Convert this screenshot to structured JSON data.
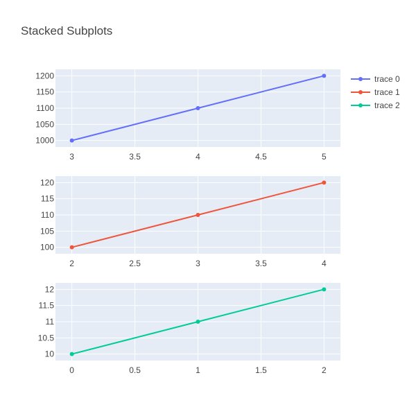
{
  "chart_data": {
    "title": "Stacked Subplots",
    "type": "line",
    "subplots": [
      {
        "series": [
          {
            "name": "trace 0",
            "color": "#636efa",
            "x": [
              3,
              4,
              5
            ],
            "y": [
              1000,
              1100,
              1200
            ]
          }
        ],
        "xlim": [
          2.87,
          5.13
        ],
        "ylim": [
          980,
          1220
        ],
        "xticks": [
          3,
          3.5,
          4,
          4.5,
          5
        ],
        "xtick_labels": [
          "3",
          "3.5",
          "4",
          "4.5",
          "5"
        ],
        "yticks": [
          1000,
          1050,
          1100,
          1150,
          1200
        ],
        "ytick_labels": [
          "1000",
          "1050",
          "1100",
          "1150",
          "1200"
        ]
      },
      {
        "series": [
          {
            "name": "trace 1",
            "color": "#ef553b",
            "x": [
              2,
              3,
              4
            ],
            "y": [
              100,
              110,
              120
            ]
          }
        ],
        "xlim": [
          1.87,
          4.13
        ],
        "ylim": [
          98,
          122
        ],
        "xticks": [
          2,
          2.5,
          3,
          3.5,
          4
        ],
        "xtick_labels": [
          "2",
          "2.5",
          "3",
          "3.5",
          "4"
        ],
        "yticks": [
          100,
          105,
          110,
          115,
          120
        ],
        "ytick_labels": [
          "100",
          "105",
          "110",
          "115",
          "120"
        ]
      },
      {
        "series": [
          {
            "name": "trace 2",
            "color": "#00cc96",
            "x": [
              0,
              1,
              2
            ],
            "y": [
              10,
              11,
              12
            ]
          }
        ],
        "xlim": [
          -0.13,
          2.13
        ],
        "ylim": [
          9.8,
          12.2
        ],
        "xticks": [
          0,
          0.5,
          1,
          1.5,
          2
        ],
        "xtick_labels": [
          "0",
          "0.5",
          "1",
          "1.5",
          "2"
        ],
        "yticks": [
          10,
          10.5,
          11,
          11.5,
          12
        ],
        "ytick_labels": [
          "10",
          "10.5",
          "11",
          "11.5",
          "12"
        ]
      }
    ],
    "legend": {
      "position": "top-right",
      "items": [
        "trace 0",
        "trace 1",
        "trace 2"
      ]
    },
    "grid": true,
    "plot_background": "#e5ecf6"
  }
}
